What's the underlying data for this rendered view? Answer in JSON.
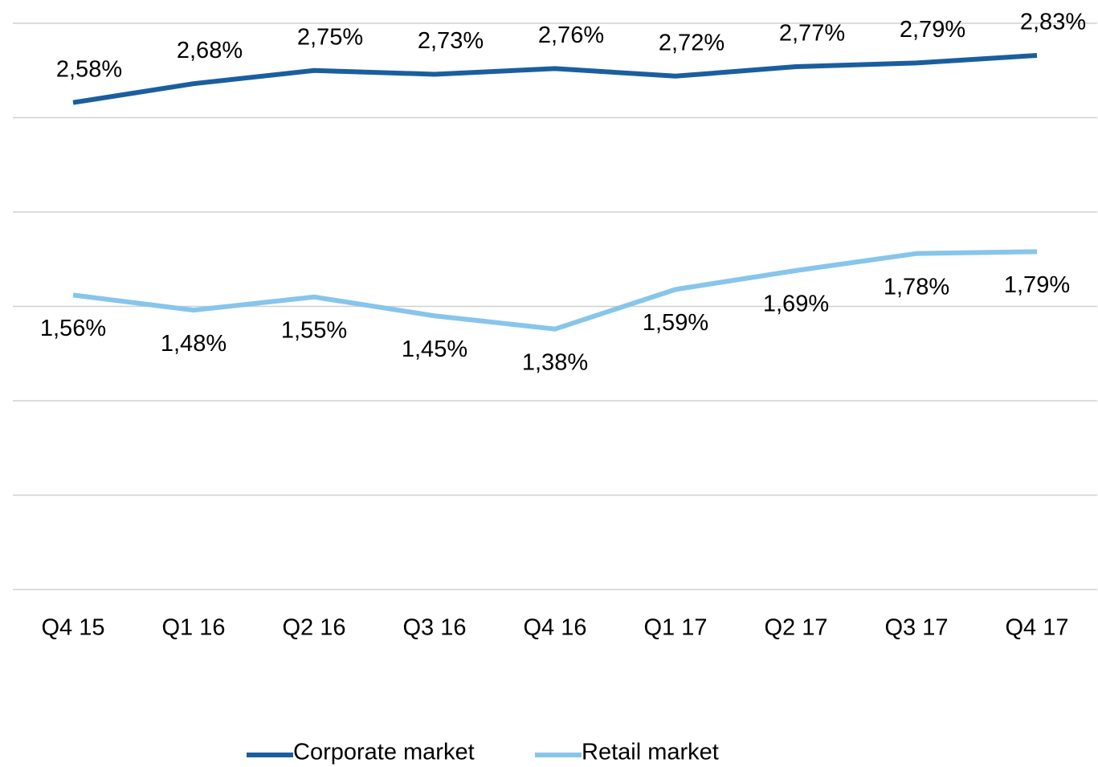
{
  "chart_data": {
    "type": "line",
    "categories": [
      "Q4 15",
      "Q1 16",
      "Q2 16",
      "Q3 16",
      "Q4 16",
      "Q1 17",
      "Q2 17",
      "Q3 17",
      "Q4 17"
    ],
    "series": [
      {
        "name": "Corporate market",
        "color": "#1b5e9e",
        "values": [
          2.58,
          2.68,
          2.75,
          2.73,
          2.76,
          2.72,
          2.77,
          2.79,
          2.83
        ],
        "value_labels": [
          "2,58%",
          "2,68%",
          "2,75%",
          "2,73%",
          "2,76%",
          "2,72%",
          "2,77%",
          "2,79%",
          "2,83%"
        ]
      },
      {
        "name": "Retail market",
        "color": "#87c5ea",
        "values": [
          1.56,
          1.48,
          1.55,
          1.45,
          1.38,
          1.59,
          1.69,
          1.78,
          1.79
        ],
        "value_labels": [
          "1,56%",
          "1,48%",
          "1,55%",
          "1,45%",
          "1,38%",
          "1,59%",
          "1,69%",
          "1,78%",
          "1,79%"
        ]
      }
    ],
    "ylim": [
      0,
      3
    ],
    "yticks": [
      0,
      0.5,
      1,
      1.5,
      2,
      2.5,
      3
    ],
    "grid": true,
    "legend": "bottom"
  }
}
